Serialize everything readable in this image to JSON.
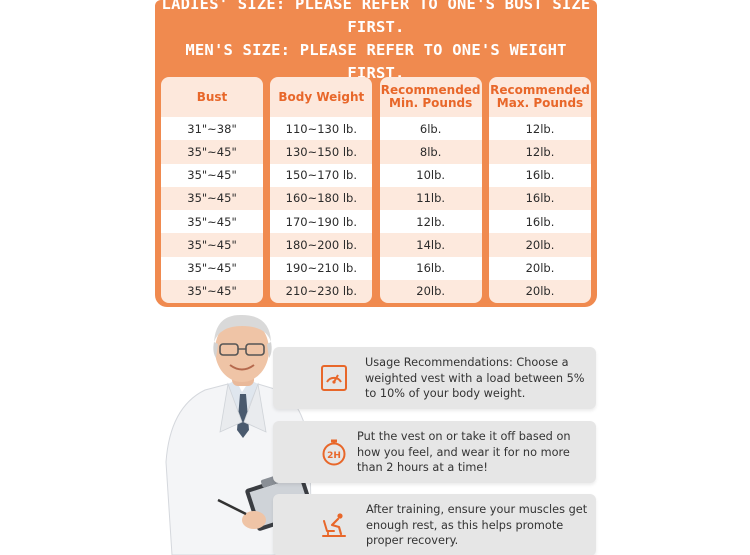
{
  "banner": {
    "line1": "LADIES' SIZE: PLEASE REFER TO ONE'S BUST SIZE FIRST.",
    "line2": "MEN'S SIZE: PLEASE REFER TO ONE'S WEIGHT FIRST."
  },
  "table": {
    "headers": [
      "Bust",
      "Body Weight",
      "Recommended Min. Pounds",
      "Recommended Max. Pounds"
    ],
    "rows": [
      [
        "31\"~38\"",
        "110~130 lb.",
        "6lb.",
        "12lb."
      ],
      [
        "35\"~45\"",
        "130~150 lb.",
        "8lb.",
        "12lb."
      ],
      [
        "35\"~45\"",
        "150~170 lb.",
        "10lb.",
        "16lb."
      ],
      [
        "35\"~45\"",
        "160~180 lb.",
        "11lb.",
        "16lb."
      ],
      [
        "35\"~45\"",
        "170~190 lb.",
        "12lb.",
        "16lb."
      ],
      [
        "35\"~45\"",
        "180~200 lb.",
        "14lb.",
        "20lb."
      ],
      [
        "35\"~45\"",
        "190~210 lb.",
        "16lb.",
        "20lb."
      ],
      [
        "35\"~45\"",
        "210~230 lb.",
        "20lb.",
        "20lb."
      ]
    ]
  },
  "tips": [
    {
      "icon": "gauge-icon",
      "text": "Usage Recommendations: Choose a weighted vest with a load between 5% to 10% of your body weight."
    },
    {
      "icon": "stopwatch-2h-icon",
      "icon_label": "2H",
      "text": "Put the vest on or take it off based on how you feel, and wear it for no more than 2 hours at a time!"
    },
    {
      "icon": "resting-person-icon",
      "text": "After training, ensure your muscles get enough rest, as this helps promote proper recovery."
    }
  ],
  "colors": {
    "accent": "#f08a4f",
    "header_text": "#e8672a",
    "row_tint": "#fde9dd",
    "tip_bg": "#e6e6e6"
  }
}
